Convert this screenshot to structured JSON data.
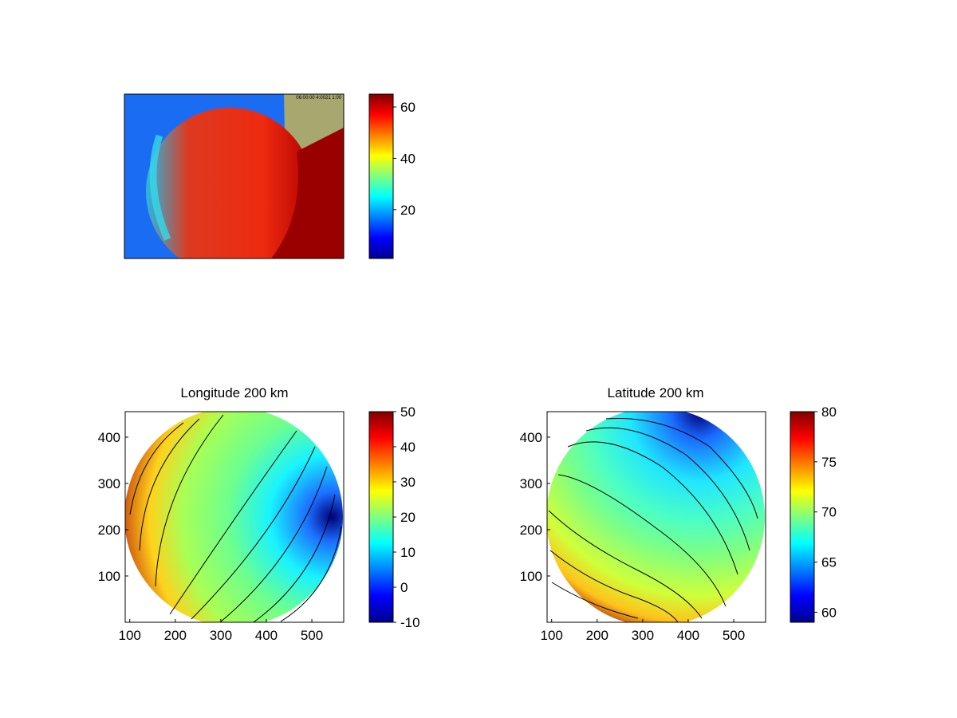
{
  "chart_data": [
    {
      "type": "heatmap",
      "id": "raw-image",
      "title": "",
      "colorbar": {
        "ticks": [
          20,
          40,
          60
        ],
        "range": [
          1,
          65
        ],
        "colormap": "jet"
      },
      "overlay_text": "06:00:00 4:0021 1:00"
    },
    {
      "type": "heatmap",
      "id": "longitude",
      "title": "Longitude 200 km",
      "x_ticks": [
        100,
        200,
        300,
        400,
        500
      ],
      "y_ticks": [
        100,
        200,
        300,
        400
      ],
      "xlim": [
        90,
        570
      ],
      "ylim": [
        0,
        455
      ],
      "contours": "black",
      "colorbar": {
        "ticks": [
          -10,
          0,
          10,
          20,
          30,
          40,
          50
        ],
        "range": [
          -10,
          50
        ],
        "colormap": "jet"
      }
    },
    {
      "type": "heatmap",
      "id": "latitude",
      "title": "Latitude 200 km",
      "x_ticks": [
        100,
        200,
        300,
        400,
        500
      ],
      "y_ticks": [
        100,
        200,
        300,
        400
      ],
      "xlim": [
        90,
        570
      ],
      "ylim": [
        0,
        455
      ],
      "contours": "black",
      "colorbar": {
        "ticks": [
          60,
          65,
          70,
          75,
          80
        ],
        "range": [
          59,
          80
        ],
        "colormap": "jet"
      }
    }
  ]
}
